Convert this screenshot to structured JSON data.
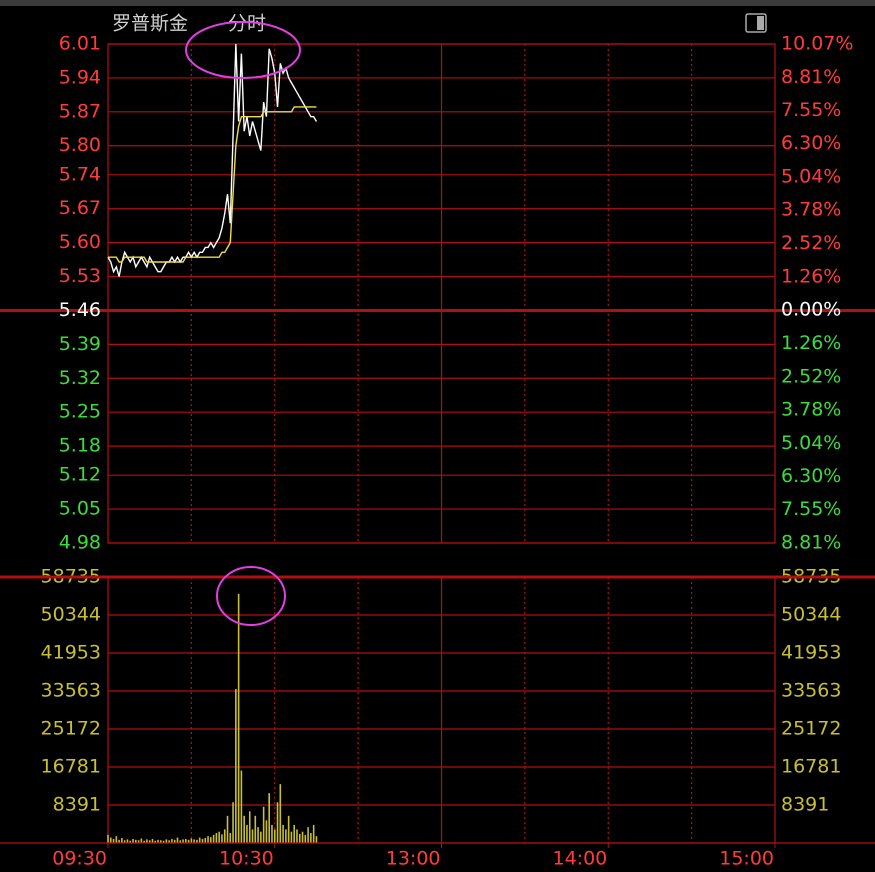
{
  "chart_data": [
    {
      "type": "line",
      "title": "罗普斯金",
      "subtitle": "分时",
      "x": [
        0,
        1,
        2,
        3,
        4,
        5,
        6,
        7,
        8,
        9,
        10,
        11,
        12,
        13,
        14,
        15,
        16,
        17,
        18,
        19,
        20,
        21,
        22,
        23,
        24,
        25,
        26,
        27,
        28,
        29,
        30,
        31,
        32,
        33,
        34,
        35,
        36,
        37,
        38,
        39,
        40,
        41,
        42,
        43,
        44,
        45,
        46,
        47,
        48,
        49,
        50,
        51,
        52,
        53,
        54,
        55,
        56,
        57,
        58,
        59,
        60,
        61,
        62,
        63,
        64,
        65,
        66,
        67,
        68,
        69,
        70,
        71,
        72,
        73,
        74,
        75
      ],
      "series": [
        {
          "color": "#ffffff",
          "values": [
            5.57,
            5.56,
            5.54,
            5.55,
            5.53,
            5.56,
            5.58,
            5.57,
            5.56,
            5.57,
            5.55,
            5.56,
            5.57,
            5.56,
            5.55,
            5.57,
            5.56,
            5.55,
            5.54,
            5.54,
            5.55,
            5.56,
            5.56,
            5.57,
            5.56,
            5.57,
            5.56,
            5.57,
            5.57,
            5.58,
            5.57,
            5.58,
            5.57,
            5.58,
            5.58,
            5.59,
            5.59,
            5.6,
            5.59,
            5.6,
            5.61,
            5.63,
            5.66,
            5.7,
            5.64,
            5.82,
            6.01,
            5.85,
            5.99,
            5.83,
            5.86,
            5.82,
            5.85,
            5.83,
            5.81,
            5.79,
            5.89,
            5.86,
            6.0,
            5.98,
            5.95,
            5.88,
            5.97,
            5.95,
            5.96,
            5.94,
            5.93,
            5.92,
            5.91,
            5.9,
            5.89,
            5.88,
            5.87,
            5.86,
            5.86,
            5.85
          ]
        },
        {
          "color": "#f0e040",
          "values": [
            5.57,
            5.57,
            5.57,
            5.57,
            5.56,
            5.56,
            5.57,
            5.57,
            5.57,
            5.57,
            5.57,
            5.57,
            5.57,
            5.57,
            5.56,
            5.56,
            5.56,
            5.56,
            5.56,
            5.56,
            5.56,
            5.56,
            5.56,
            5.56,
            5.56,
            5.56,
            5.56,
            5.56,
            5.57,
            5.57,
            5.57,
            5.57,
            5.57,
            5.57,
            5.57,
            5.57,
            5.57,
            5.57,
            5.57,
            5.57,
            5.57,
            5.58,
            5.58,
            5.59,
            5.6,
            5.7,
            5.8,
            5.84,
            5.86,
            5.86,
            5.86,
            5.86,
            5.86,
            5.86,
            5.86,
            5.86,
            5.87,
            5.87,
            5.87,
            5.87,
            5.87,
            5.87,
            5.87,
            5.87,
            5.87,
            5.87,
            5.87,
            5.88,
            5.88,
            5.88,
            5.88,
            5.88,
            5.88,
            5.88,
            5.88,
            5.88
          ]
        }
      ],
      "xlim": [
        0,
        240
      ],
      "ylim": [
        4.98,
        6.01
      ],
      "yticks": [
        6.01,
        5.94,
        5.87,
        {
          "value": 5.8,
          "label": "5.80"
        },
        5.74,
        5.67,
        {
          "value": 5.6,
          "label": "5.60"
        },
        5.53,
        5.46,
        5.39,
        5.32,
        5.25,
        5.18,
        5.12,
        5.05,
        4.98
      ],
      "y2lim": [
        -8.81,
        10.07
      ],
      "y2ticks": [
        {
          "value": 10.07,
          "label": "10.07%"
        },
        {
          "value": 8.81,
          "label": "8.81%"
        },
        {
          "value": 7.55,
          "label": "7.55%"
        },
        {
          "value": 6.3,
          "label": "6.30%"
        },
        {
          "value": 5.04,
          "label": "5.04%"
        },
        {
          "value": 3.78,
          "label": "3.78%"
        },
        {
          "value": 2.52,
          "label": "2.52%"
        },
        {
          "value": 1.26,
          "label": "1.26%"
        },
        {
          "value": 0,
          "label": "0.00%"
        },
        {
          "value": -1.26,
          "label": "1.26%"
        },
        {
          "value": -2.52,
          "label": "2.52%"
        },
        {
          "value": -3.78,
          "label": "3.78%"
        },
        {
          "value": -5.04,
          "label": "5.04%"
        },
        {
          "value": -6.3,
          "label": "6.30%"
        },
        {
          "value": -7.55,
          "label": "7.55%"
        },
        {
          "value": -8.81,
          "label": "8.81%"
        }
      ],
      "grid": true
    },
    {
      "type": "bar",
      "x": [
        0,
        1,
        2,
        3,
        4,
        5,
        6,
        7,
        8,
        9,
        10,
        11,
        12,
        13,
        14,
        15,
        16,
        17,
        18,
        19,
        20,
        21,
        22,
        23,
        24,
        25,
        26,
        27,
        28,
        29,
        30,
        31,
        32,
        33,
        34,
        35,
        36,
        37,
        38,
        39,
        40,
        41,
        42,
        43,
        44,
        45,
        46,
        47,
        48,
        49,
        50,
        51,
        52,
        53,
        54,
        55,
        56,
        57,
        58,
        59,
        60,
        61,
        62,
        63,
        64,
        65,
        66,
        67,
        68,
        69,
        70,
        71,
        72,
        73,
        74,
        75
      ],
      "values": [
        1800,
        1200,
        900,
        1500,
        700,
        1100,
        600,
        800,
        500,
        900,
        700,
        600,
        1000,
        500,
        800,
        600,
        900,
        500,
        700,
        600,
        500,
        800,
        600,
        900,
        700,
        1200,
        600,
        800,
        900,
        700,
        1000,
        800,
        700,
        1200,
        900,
        1100,
        1500,
        1300,
        1800,
        2200,
        2500,
        1900,
        3000,
        6000,
        2200,
        9000,
        34000,
        55000,
        16000,
        6000,
        4000,
        7000,
        3000,
        6000,
        3500,
        2500,
        8000,
        5000,
        11000,
        4000,
        3000,
        9000,
        13000,
        4000,
        3000,
        6000,
        2500,
        4000,
        3000,
        2000,
        2500,
        1800,
        3500,
        2200,
        4000,
        1500
      ],
      "color": "#c8c030",
      "xlim": [
        0,
        240
      ],
      "xticks": [
        {
          "value": 0,
          "label": "09:30"
        },
        {
          "value": 60,
          "label": "10:30"
        },
        {
          "value": 120,
          "label": "13:00"
        },
        {
          "value": 180,
          "label": "14:00"
        },
        {
          "value": 240,
          "label": "15:00"
        }
      ],
      "ylim": [
        0,
        58735
      ],
      "yticks": [
        58735,
        50344,
        41953,
        33563,
        25172,
        16781,
        8391
      ],
      "grid": true
    }
  ]
}
